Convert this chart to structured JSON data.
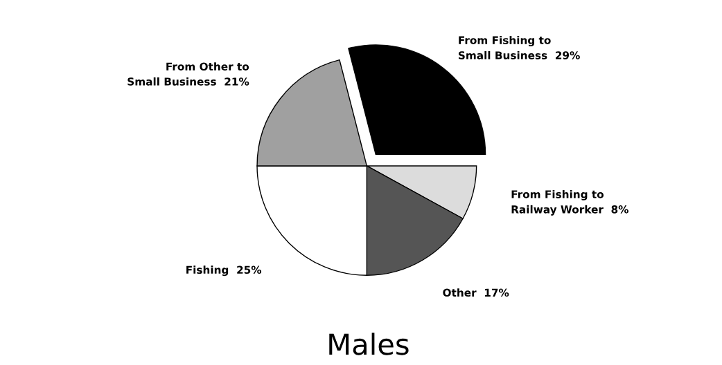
{
  "chart_data": {
    "type": "pie",
    "title": "Males",
    "categories": [
      "From Fishing to\nSmall Business",
      "From Fishing to\nRailway Worker",
      "Other",
      "Fishing",
      "From Other to\nSmall Business"
    ],
    "values": [
      29,
      8,
      17,
      25,
      21
    ],
    "value_labels": [
      "29%",
      "8%",
      "17%",
      "25%",
      "21%"
    ],
    "colors": [
      "#000000",
      "#dcdcdc",
      "#555555",
      "#ffffff",
      "#a0a0a0"
    ],
    "legend": false
  }
}
